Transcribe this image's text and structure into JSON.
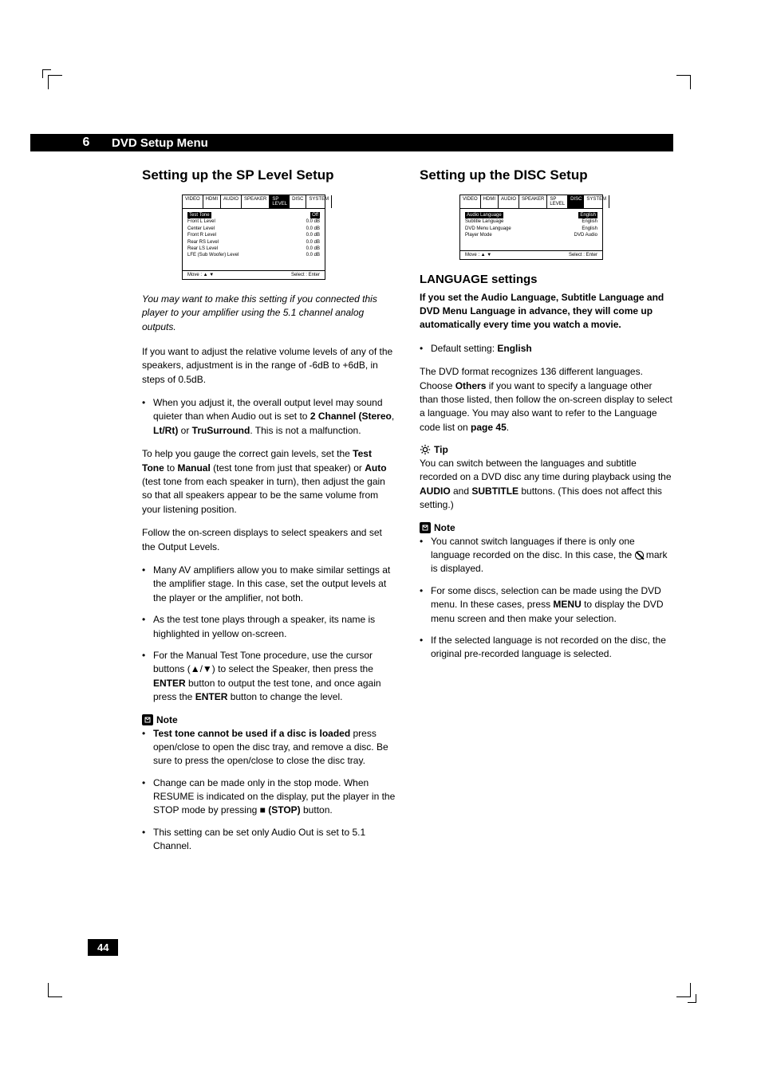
{
  "chapter": {
    "num": "6",
    "title": "DVD Setup Menu"
  },
  "page_number": "44",
  "left": {
    "title": "Setting up the SP Level Setup",
    "screenshot": {
      "tabs": [
        "VIDEO",
        "HDMI",
        "AUDIO",
        "SPEAKER",
        "SP LEVEL",
        "DISC",
        "SYSTEM"
      ],
      "active_tab": "SP LEVEL",
      "rows": [
        {
          "l": "Test Tone",
          "r": "Off",
          "hl": true
        },
        {
          "l": "Front L Level",
          "r": "0.0 dB"
        },
        {
          "l": "Center Level",
          "r": "0.0 dB"
        },
        {
          "l": "Front R Level",
          "r": "0.0 dB"
        },
        {
          "l": "Rear RS Level",
          "r": "0.0 dB"
        },
        {
          "l": "Rear LS Level",
          "r": "0.0 dB"
        },
        {
          "l": "LFE (Sub Woofer) Level",
          "r": "0.0 dB"
        }
      ],
      "foot_l": "Move : ▲ ▼",
      "foot_r": "Select : Enter"
    },
    "intro": "You may want to make this setting if you connected this player to your amplifier using the 5.1 channel analog outputs.",
    "p1": "If you want to adjust the relative volume levels of any of the speakers, adjustment is in the range of -6dB to +6dB, in steps of 0.5dB.",
    "b1": "When you adjust it, the overall output level may sound quieter than when Audio out is set to ",
    "b1_bold1": "2 Channel (Stereo",
    "b1_mid": ", ",
    "b1_bold2": "Lt/Rt)",
    "b1_or": " or ",
    "b1_bold3": "TruSurround",
    "b1_end": ". This is not a malfunction.",
    "p2a": "To help you gauge the correct gain levels, set the ",
    "p2_tt": "Test Tone",
    "p2b": " to ",
    "p2_man": "Manual",
    "p2c": " (test tone from just that speaker) or ",
    "p2_auto": "Auto",
    "p2d": " (test tone from each speaker in turn), then adjust the gain so that all speakers appear to be the same volume from your listening position.",
    "p3": "Follow the on-screen displays to select speakers and set the Output Levels.",
    "b2": "Many AV amplifiers allow you to make similar settings at the amplifier stage. In this case, set the output levels at the player or the amplifier, not both.",
    "b3": "As the test tone plays through a speaker, its name is highlighted in yellow on-screen.",
    "b4a": "For the Manual Test Tone procedure, use the cursor buttons (▲/▼) to select the Speaker, then press the ",
    "b4_enter1": "ENTER",
    "b4b": " button to output the test tone, and once again press the ",
    "b4_enter2": "ENTER",
    "b4c": " button to change the level.",
    "note_label": "Note",
    "n1_bold": "Test tone cannot be used if a disc is loaded",
    "n1": " press open/close to open the disc tray, and remove a disc. Be sure to press the open/close to close the disc tray.",
    "n2a": "Change can be made only in the stop mode. When RESUME is indicated on the display, put the player in the STOP mode by pressing ■ ",
    "n2_stop": "(STOP)",
    "n2b": " button.",
    "n3": "This setting can be set only Audio Out is set to 5.1 Channel."
  },
  "right": {
    "title": "Setting up the DISC Setup",
    "screenshot": {
      "tabs": [
        "VIDEO",
        "HDMI",
        "AUDIO",
        "SPEAKER",
        "SP LEVEL",
        "DISC",
        "SYSTEM"
      ],
      "active_tab": "DISC",
      "rows": [
        {
          "l": "Audio Language",
          "r": "English",
          "hl": true
        },
        {
          "l": "Subtitle Language",
          "r": "English"
        },
        {
          "l": "DVD Menu Language",
          "r": "English"
        },
        {
          "l": "Player Mode",
          "r": "DVD Audio"
        }
      ],
      "foot_l": "Move : ▲ ▼",
      "foot_r": "Select : Enter"
    },
    "subhead": "LANGUAGE settings",
    "bold_intro": "If you set the Audio Language, Subtitle Language and DVD Menu Language in advance, they will come up automatically every time you watch a movie.",
    "b1a": "Default setting: ",
    "b1_eng": "English",
    "p1a": "The DVD format recognizes 136 different languages. Choose ",
    "p1_others": "Others",
    "p1b": " if you want to specify a language other than those listed, then follow the on-screen display to select a language. You may also want to refer to the Language code list on ",
    "p1_page": "page 45",
    "p1c": ".",
    "tip_label": "Tip",
    "tip_a": "You can switch between the languages and subtitle recorded on a DVD disc any time during playback using the ",
    "tip_audio": "AUDIO",
    "tip_and": " and ",
    "tip_sub": "SUBTITLE",
    "tip_b": " buttons. (This does not affect this setting.)",
    "note_label": "Note",
    "n1a": "You cannot switch languages if there is only one language recorded on the disc. In this case, the ",
    "n1b": " mark is displayed.",
    "n2a": "For some discs, selection can be made using the DVD menu. In these cases, press ",
    "n2_menu": "MENU",
    "n2b": " to display the DVD menu screen and then make your selection.",
    "n3": "If the selected language is not recorded on the disc, the original pre-recorded language is selected."
  }
}
